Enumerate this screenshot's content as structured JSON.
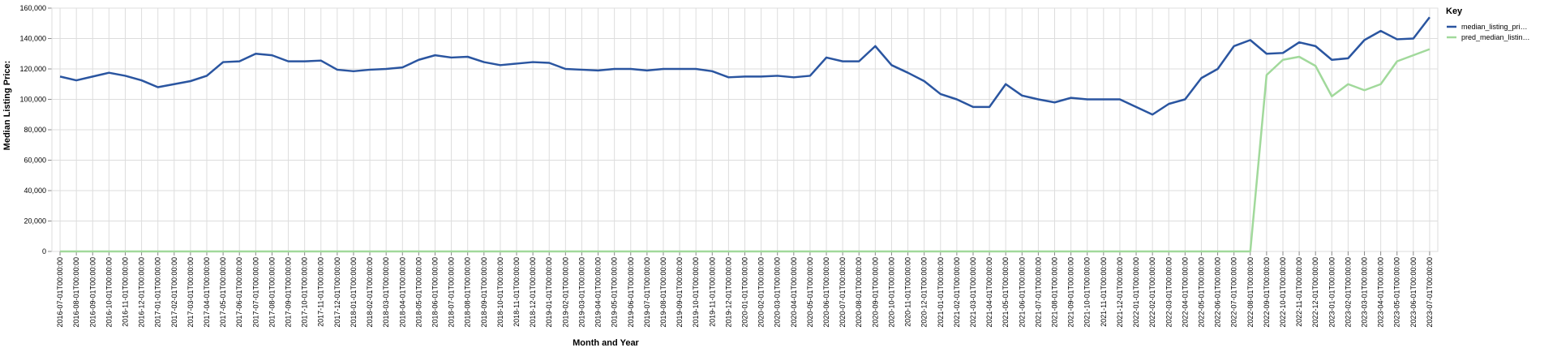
{
  "chart_data": {
    "type": "line",
    "x_label": "Month and Year",
    "y_label": "Median Listing Price:",
    "legend_title": "Key",
    "categories": [
      "2016-07-01T00:00:00",
      "2016-08-01T00:00:00",
      "2016-09-01T00:00:00",
      "2016-10-01T00:00:00",
      "2016-11-01T00:00:00",
      "2016-12-01T00:00:00",
      "2017-01-01T00:00:00",
      "2017-02-01T00:00:00",
      "2017-03-01T00:00:00",
      "2017-04-01T00:00:00",
      "2017-05-01T00:00:00",
      "2017-06-01T00:00:00",
      "2017-07-01T00:00:00",
      "2017-08-01T00:00:00",
      "2017-09-01T00:00:00",
      "2017-10-01T00:00:00",
      "2017-11-01T00:00:00",
      "2017-12-01T00:00:00",
      "2018-01-01T00:00:00",
      "2018-02-01T00:00:00",
      "2018-03-01T00:00:00",
      "2018-04-01T00:00:00",
      "2018-05-01T00:00:00",
      "2018-06-01T00:00:00",
      "2018-07-01T00:00:00",
      "2018-08-01T00:00:00",
      "2018-09-01T00:00:00",
      "2018-10-01T00:00:00",
      "2018-11-01T00:00:00",
      "2018-12-01T00:00:00",
      "2019-01-01T00:00:00",
      "2019-02-01T00:00:00",
      "2019-03-01T00:00:00",
      "2019-04-01T00:00:00",
      "2019-05-01T00:00:00",
      "2019-06-01T00:00:00",
      "2019-07-01T00:00:00",
      "2019-08-01T00:00:00",
      "2019-09-01T00:00:00",
      "2019-10-01T00:00:00",
      "2019-11-01T00:00:00",
      "2019-12-01T00:00:00",
      "2020-01-01T00:00:00",
      "2020-02-01T00:00:00",
      "2020-03-01T00:00:00",
      "2020-04-01T00:00:00",
      "2020-05-01T00:00:00",
      "2020-06-01T00:00:00",
      "2020-07-01T00:00:00",
      "2020-08-01T00:00:00",
      "2020-09-01T00:00:00",
      "2020-10-01T00:00:00",
      "2020-11-01T00:00:00",
      "2020-12-01T00:00:00",
      "2021-01-01T00:00:00",
      "2021-02-01T00:00:00",
      "2021-03-01T00:00:00",
      "2021-04-01T00:00:00",
      "2021-05-01T00:00:00",
      "2021-06-01T00:00:00",
      "2021-07-01T00:00:00",
      "2021-08-01T00:00:00",
      "2021-09-01T00:00:00",
      "2021-10-01T00:00:00",
      "2021-11-01T00:00:00",
      "2021-12-01T00:00:00",
      "2022-01-01T00:00:00",
      "2022-02-01T00:00:00",
      "2022-03-01T00:00:00",
      "2022-04-01T00:00:00",
      "2022-05-01T00:00:00",
      "2022-06-01T00:00:00",
      "2022-07-01T00:00:00",
      "2022-08-01T00:00:00",
      "2022-09-01T00:00:00",
      "2022-10-01T00:00:00",
      "2022-11-01T00:00:00",
      "2022-12-01T00:00:00",
      "2023-01-01T00:00:00",
      "2023-02-01T00:00:00",
      "2023-03-01T00:00:00",
      "2023-04-01T00:00:00",
      "2023-05-01T00:00:00",
      "2023-06-01T00:00:00",
      "2023-07-01T00:00:00"
    ],
    "series": [
      {
        "name": "median_listing_pri…",
        "color": "#2a55a0",
        "values": [
          115000,
          112500,
          115000,
          117500,
          115500,
          112500,
          108000,
          110000,
          112000,
          115500,
          124500,
          125000,
          130000,
          129000,
          125000,
          125000,
          125500,
          119500,
          118500,
          119500,
          120000,
          121000,
          126000,
          129000,
          127500,
          128000,
          124500,
          122500,
          123500,
          124500,
          124000,
          120000,
          119500,
          119000,
          120000,
          120000,
          119000,
          120000,
          120000,
          120000,
          118500,
          114500,
          115000,
          115000,
          115500,
          114500,
          115500,
          127500,
          125000,
          125000,
          135000,
          122500,
          117500,
          112000,
          103500,
          100000,
          95000,
          95000,
          110000,
          102500,
          100000,
          98000,
          101000,
          100000,
          100000,
          100000,
          95000,
          90000,
          97000,
          100000,
          114000,
          120000,
          135000,
          139000,
          130000,
          130500,
          137500,
          135000,
          126000,
          127000,
          139000,
          145000,
          139500,
          140000,
          154000
        ]
      },
      {
        "name": "pred_median_listin…",
        "color": "#a1d99b",
        "values": [
          0,
          0,
          0,
          0,
          0,
          0,
          0,
          0,
          0,
          0,
          0,
          0,
          0,
          0,
          0,
          0,
          0,
          0,
          0,
          0,
          0,
          0,
          0,
          0,
          0,
          0,
          0,
          0,
          0,
          0,
          0,
          0,
          0,
          0,
          0,
          0,
          0,
          0,
          0,
          0,
          0,
          0,
          0,
          0,
          0,
          0,
          0,
          0,
          0,
          0,
          0,
          0,
          0,
          0,
          0,
          0,
          0,
          0,
          0,
          0,
          0,
          0,
          0,
          0,
          0,
          0,
          0,
          0,
          0,
          0,
          0,
          0,
          0,
          0,
          116000,
          126000,
          128000,
          122000,
          102000,
          110000,
          106000,
          110000,
          125000,
          129000,
          133000
        ]
      }
    ],
    "ylim": [
      0,
      160000
    ],
    "yticks": [
      0,
      {
        "value": 20000,
        "label": "20,000"
      },
      {
        "value": 40000,
        "label": "40,000"
      },
      {
        "value": 60000,
        "label": "60,000"
      },
      {
        "value": 80000,
        "label": "80,000"
      },
      {
        "value": 100000,
        "label": "100,000"
      },
      {
        "value": 120000,
        "label": "120,000"
      },
      {
        "value": 140000,
        "label": "140,000"
      },
      {
        "value": 160000,
        "label": "160,000"
      }
    ],
    "grid": true,
    "legend": "right"
  }
}
